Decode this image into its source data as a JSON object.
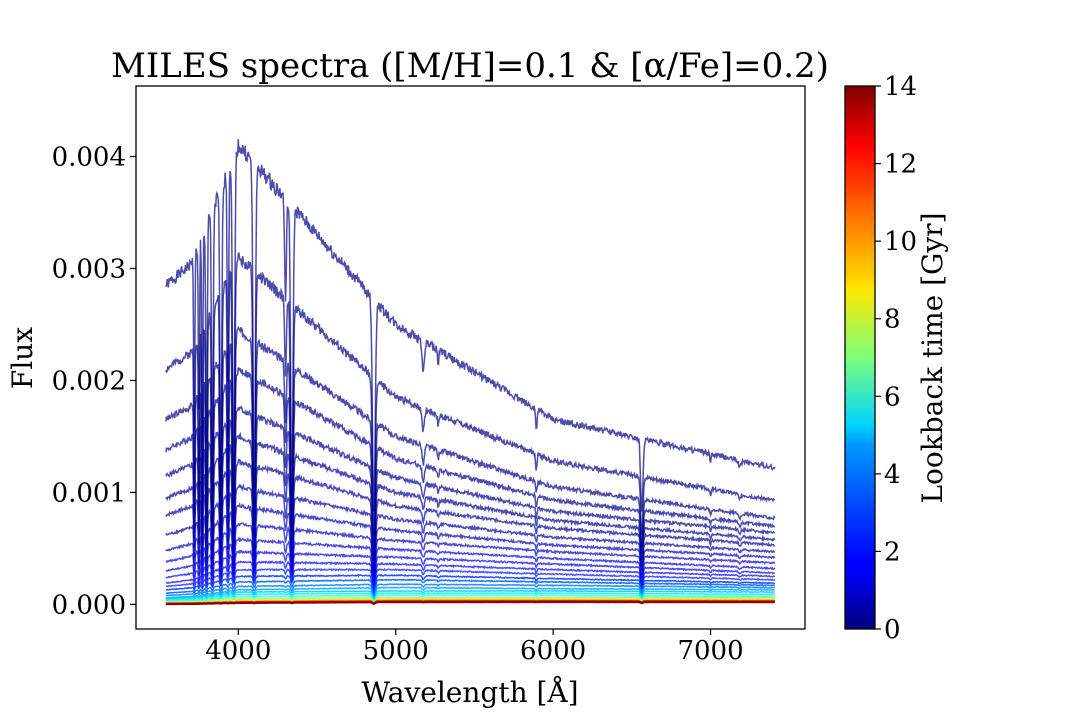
{
  "chart_data": {
    "type": "line",
    "title": "MILES spectra ([M/H]=0.1 & [α/Fe]=0.2)",
    "xlabel": "Wavelength [Å]",
    "ylabel": "Flux",
    "xlim": [
      3350,
      7600
    ],
    "ylim": [
      -0.00022,
      0.00463
    ],
    "x_ticks": [
      4000,
      5000,
      6000,
      7000
    ],
    "x_tick_labels": [
      "4000",
      "5000",
      "6000",
      "7000"
    ],
    "y_ticks": [
      0,
      0.001,
      0.002,
      0.003,
      0.004
    ],
    "y_tick_labels": [
      "0.000",
      "0.001",
      "0.002",
      "0.003",
      "0.004"
    ],
    "grid": false,
    "legend": "none",
    "wavelength_range": [
      3540,
      7410
    ],
    "absorption_lines": [
      3720,
      3750,
      3771,
      3798,
      3835,
      3889,
      3934,
      3970,
      4101,
      4300,
      4340,
      4861,
      5175,
      5270,
      5893,
      6563,
      7000,
      7186
    ],
    "series": [
      {
        "age_gyr": 0.06,
        "flux_at_3540": 0.00285,
        "flux_at_4000": 0.0041,
        "flux_at_5000": 0.0025,
        "flux_at_6000": 0.00165,
        "flux_at_7400": 0.00122
      },
      {
        "age_gyr": 0.09,
        "flux_at_3540": 0.0021,
        "flux_at_4000": 0.0031,
        "flux_at_5000": 0.00185,
        "flux_at_6000": 0.00128,
        "flux_at_7400": 0.00093
      },
      {
        "age_gyr": 0.13,
        "flux_at_3540": 0.00165,
        "flux_at_4000": 0.00245,
        "flux_at_5000": 0.0015,
        "flux_at_6000": 0.00105,
        "flux_at_7400": 0.00077
      },
      {
        "age_gyr": 0.18,
        "flux_at_3540": 0.00138,
        "flux_at_4000": 0.0021,
        "flux_at_5000": 0.0013,
        "flux_at_6000": 0.00093,
        "flux_at_7400": 0.0007
      },
      {
        "age_gyr": 0.25,
        "flux_at_3540": 0.00115,
        "flux_at_4000": 0.00175,
        "flux_at_5000": 0.00113,
        "flux_at_6000": 0.00083,
        "flux_at_7400": 0.00064
      },
      {
        "age_gyr": 0.35,
        "flux_at_3540": 0.00095,
        "flux_at_4000": 0.0015,
        "flux_at_5000": 0.001,
        "flux_at_6000": 0.00075,
        "flux_at_7400": 0.00058
      },
      {
        "age_gyr": 0.45,
        "flux_at_3540": 0.0008,
        "flux_at_4000": 0.00128,
        "flux_at_5000": 0.00088,
        "flux_at_6000": 0.00068,
        "flux_at_7400": 0.00053
      },
      {
        "age_gyr": 0.6,
        "flux_at_3540": 0.00062,
        "flux_at_4000": 0.00105,
        "flux_at_5000": 0.00076,
        "flux_at_6000": 0.0006,
        "flux_at_7400": 0.00047
      },
      {
        "age_gyr": 0.8,
        "flux_at_3540": 0.00048,
        "flux_at_4000": 0.00088,
        "flux_at_5000": 0.00066,
        "flux_at_6000": 0.00053,
        "flux_at_7400": 0.00042
      },
      {
        "age_gyr": 1.0,
        "flux_at_3540": 0.00038,
        "flux_at_4000": 0.00072,
        "flux_at_5000": 0.00057,
        "flux_at_6000": 0.00047,
        "flux_at_7400": 0.00037
      },
      {
        "age_gyr": 1.25,
        "flux_at_3540": 0.0003,
        "flux_at_4000": 0.00058,
        "flux_at_5000": 0.00049,
        "flux_at_6000": 0.00041,
        "flux_at_7400": 0.00032
      },
      {
        "age_gyr": 1.5,
        "flux_at_3540": 0.00024,
        "flux_at_4000": 0.00047,
        "flux_at_5000": 0.00042,
        "flux_at_6000": 0.00036,
        "flux_at_7400": 0.00028
      },
      {
        "age_gyr": 1.75,
        "flux_at_3540": 0.00019,
        "flux_at_4000": 0.00038,
        "flux_at_5000": 0.00036,
        "flux_at_6000": 0.00031,
        "flux_at_7400": 0.00025
      },
      {
        "age_gyr": 2.0,
        "flux_at_3540": 0.00016,
        "flux_at_4000": 0.00031,
        "flux_at_5000": 0.00031,
        "flux_at_6000": 0.00027,
        "flux_at_7400": 0.00022
      },
      {
        "age_gyr": 2.5,
        "flux_at_3540": 0.00013,
        "flux_at_4000": 0.00025,
        "flux_at_5000": 0.00026,
        "flux_at_6000": 0.00023,
        "flux_at_7400": 0.00019
      },
      {
        "age_gyr": 3.0,
        "flux_at_3540": 0.0001,
        "flux_at_4000": 0.0002,
        "flux_at_5000": 0.00022,
        "flux_at_6000": 0.0002,
        "flux_at_7400": 0.00017
      },
      {
        "age_gyr": 3.5,
        "flux_at_3540": 8e-05,
        "flux_at_4000": 0.00016,
        "flux_at_5000": 0.00018,
        "flux_at_6000": 0.00017,
        "flux_at_7400": 0.00015
      },
      {
        "age_gyr": 4.0,
        "flux_at_3540": 6e-05,
        "flux_at_4000": 0.00013,
        "flux_at_5000": 0.00015,
        "flux_at_6000": 0.00014,
        "flux_at_7400": 0.00013
      },
      {
        "age_gyr": 4.5,
        "flux_at_3540": 5e-05,
        "flux_at_4000": 0.00011,
        "flux_at_5000": 0.00012,
        "flux_at_6000": 0.00012,
        "flux_at_7400": 0.00011
      },
      {
        "age_gyr": 5.0,
        "flux_at_3540": 4e-05,
        "flux_at_4000": 9e-05,
        "flux_at_5000": 0.0001,
        "flux_at_6000": 0.0001,
        "flux_at_7400": 9e-05
      },
      {
        "age_gyr": 6.0,
        "flux_at_3540": 3e-05,
        "flux_at_4000": 7e-05,
        "flux_at_5000": 8e-05,
        "flux_at_6000": 8e-05,
        "flux_at_7400": 7e-05
      },
      {
        "age_gyr": 7.0,
        "flux_at_3540": 2e-05,
        "flux_at_4000": 5e-05,
        "flux_at_5000": 6e-05,
        "flux_at_6000": 6e-05,
        "flux_at_7400": 6e-05
      },
      {
        "age_gyr": 8.0,
        "flux_at_3540": 1.5e-05,
        "flux_at_4000": 4e-05,
        "flux_at_5000": 5e-05,
        "flux_at_6000": 5e-05,
        "flux_at_7400": 5e-05
      },
      {
        "age_gyr": 9.0,
        "flux_at_3540": 1e-05,
        "flux_at_4000": 3e-05,
        "flux_at_5000": 4e-05,
        "flux_at_6000": 4e-05,
        "flux_at_7400": 4e-05
      },
      {
        "age_gyr": 10.0,
        "flux_at_3540": 8e-06,
        "flux_at_4000": 2.5e-05,
        "flux_at_5000": 3.5e-05,
        "flux_at_6000": 3.5e-05,
        "flux_at_7400": 3.3e-05
      },
      {
        "age_gyr": 11.0,
        "flux_at_3540": 6e-06,
        "flux_at_4000": 2e-05,
        "flux_at_5000": 3e-05,
        "flux_at_6000": 3e-05,
        "flux_at_7400": 3e-05
      },
      {
        "age_gyr": 12.0,
        "flux_at_3540": 5e-06,
        "flux_at_4000": 1.7e-05,
        "flux_at_5000": 2.6e-05,
        "flux_at_6000": 2.7e-05,
        "flux_at_7400": 2.6e-05
      },
      {
        "age_gyr": 13.0,
        "flux_at_3540": 4e-06,
        "flux_at_4000": 1.5e-05,
        "flux_at_5000": 2.3e-05,
        "flux_at_6000": 2.4e-05,
        "flux_at_7400": 2.3e-05
      },
      {
        "age_gyr": 14.0,
        "flux_at_3540": 3e-06,
        "flux_at_4000": 1.3e-05,
        "flux_at_5000": 2e-05,
        "flux_at_6000": 2.1e-05,
        "flux_at_7400": 2e-05
      }
    ],
    "colorbar": {
      "label": "Lookback time [Gyr]",
      "colormap": "jet",
      "range": [
        0,
        14
      ],
      "ticks": [
        0,
        2,
        4,
        6,
        8,
        10,
        12,
        14
      ],
      "tick_labels": [
        "0",
        "2",
        "4",
        "6",
        "8",
        "10",
        "12",
        "14"
      ]
    }
  }
}
